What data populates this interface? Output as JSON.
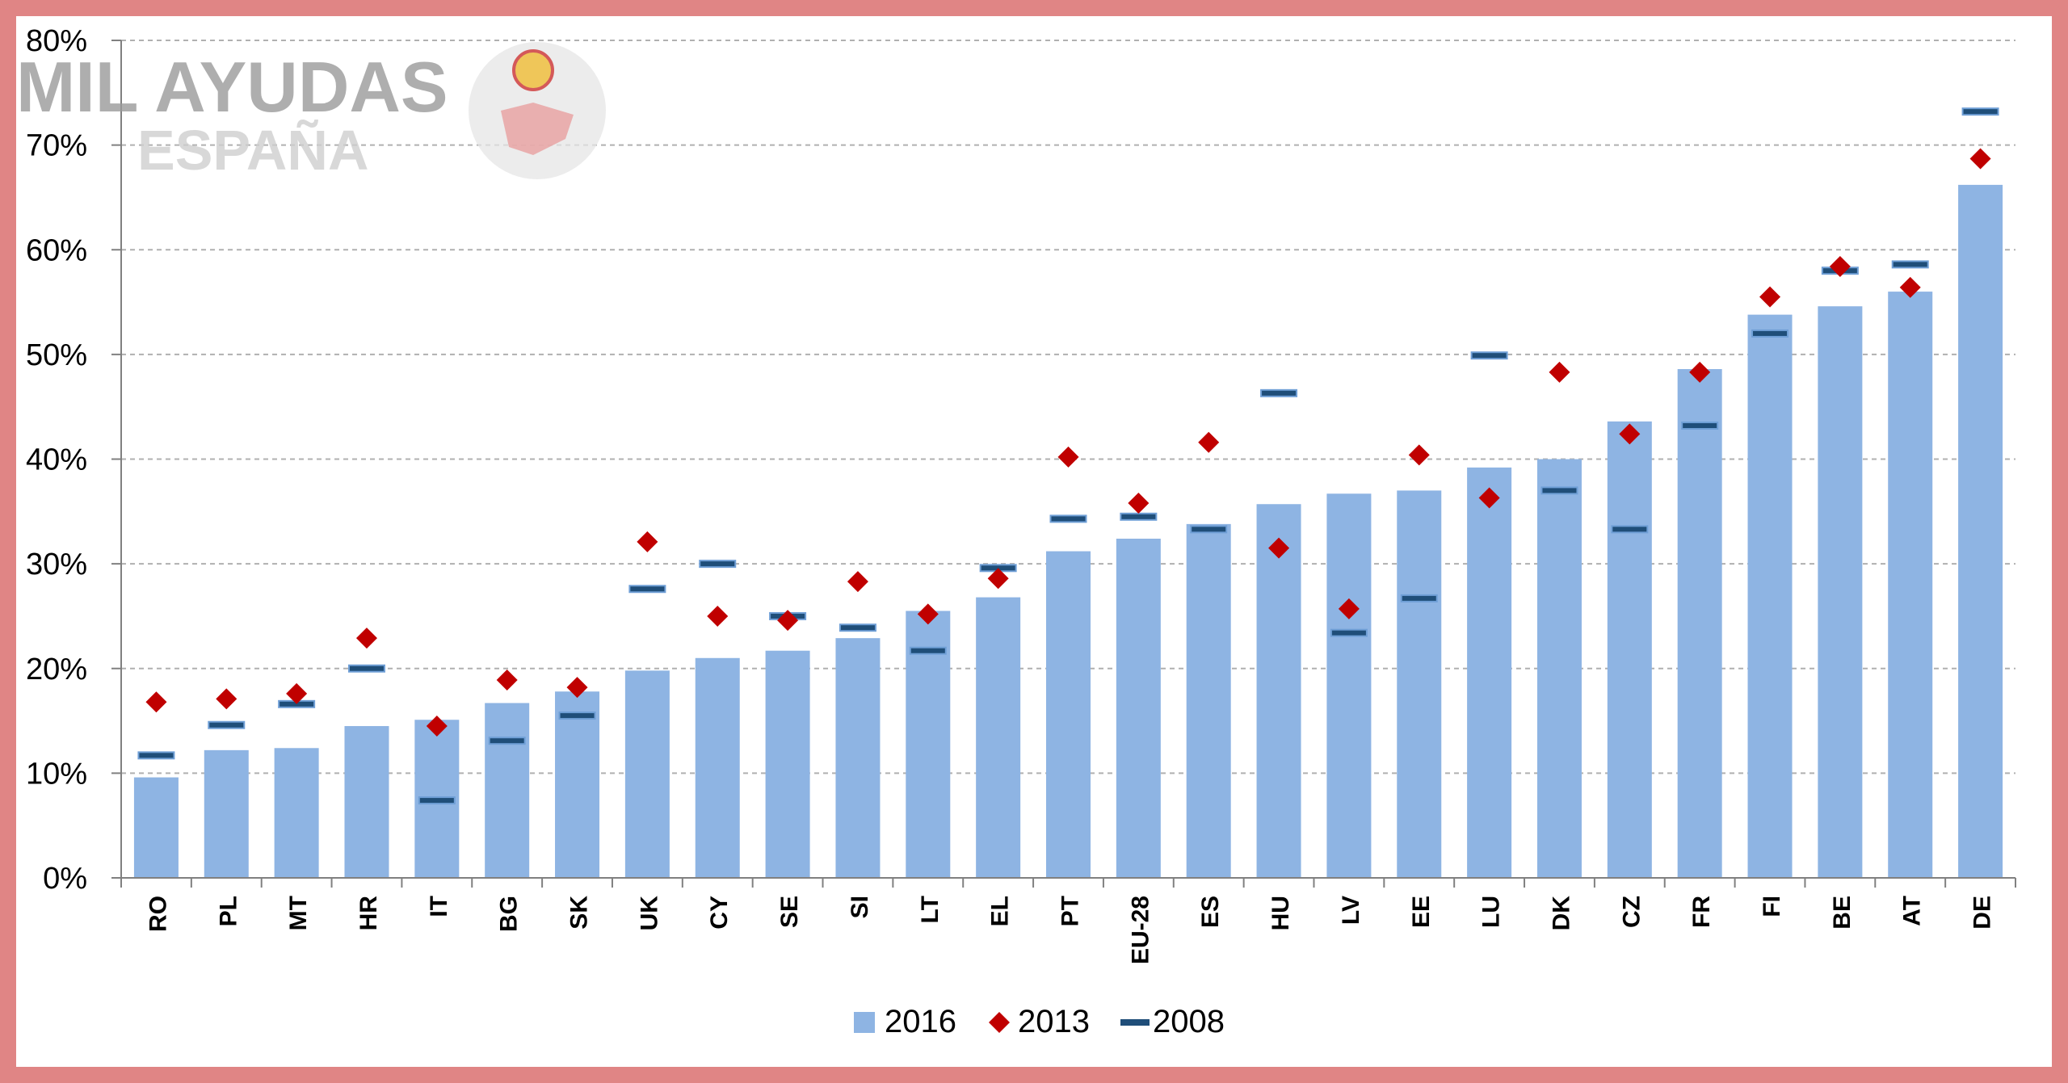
{
  "watermark": {
    "line1": "MIL AYUDAS",
    "line2": "ESPAÑA"
  },
  "chart_data": {
    "type": "bar",
    "title": "",
    "xlabel": "",
    "ylabel": "",
    "ylim": [
      0,
      80
    ],
    "yticks": [
      "0%",
      "10%",
      "20%",
      "30%",
      "40%",
      "50%",
      "60%",
      "70%",
      "80%"
    ],
    "grid": true,
    "legend_position": "bottom-center",
    "categories": [
      "RO",
      "PL",
      "MT",
      "HR",
      "IT",
      "BG",
      "SK",
      "UK",
      "CY",
      "SE",
      "SI",
      "LT",
      "EL",
      "PT",
      "EU-28",
      "ES",
      "HU",
      "LV",
      "EE",
      "LU",
      "DK",
      "CZ",
      "FR",
      "FI",
      "BE",
      "AT",
      "DE"
    ],
    "series": [
      {
        "name": "2016",
        "mark": "bar",
        "color": "#8eb4e3",
        "values": [
          9.6,
          12.2,
          12.4,
          14.5,
          15.1,
          16.7,
          17.8,
          19.8,
          21.0,
          21.7,
          22.9,
          25.5,
          26.8,
          31.2,
          32.4,
          33.8,
          35.7,
          36.7,
          37.0,
          39.2,
          40.0,
          43.6,
          48.6,
          53.8,
          54.6,
          56.0,
          66.2
        ]
      },
      {
        "name": "2013",
        "mark": "diamond",
        "color": "#c00000",
        "values": [
          16.8,
          17.1,
          17.6,
          22.9,
          14.5,
          18.9,
          18.2,
          32.1,
          25.0,
          24.6,
          28.3,
          25.2,
          28.6,
          40.2,
          35.8,
          41.6,
          31.5,
          25.7,
          40.4,
          36.3,
          48.3,
          42.4,
          48.3,
          55.5,
          58.4,
          56.4,
          68.7
        ]
      },
      {
        "name": "2008",
        "mark": "dash",
        "color": "#1f4e79",
        "values": [
          11.7,
          14.6,
          16.6,
          20.0,
          7.4,
          13.1,
          15.5,
          27.6,
          30.0,
          25.0,
          23.9,
          21.7,
          29.6,
          34.3,
          34.5,
          33.3,
          46.3,
          23.4,
          26.7,
          49.9,
          37.0,
          33.3,
          43.2,
          52.0,
          58.0,
          58.6,
          73.2
        ]
      }
    ]
  }
}
